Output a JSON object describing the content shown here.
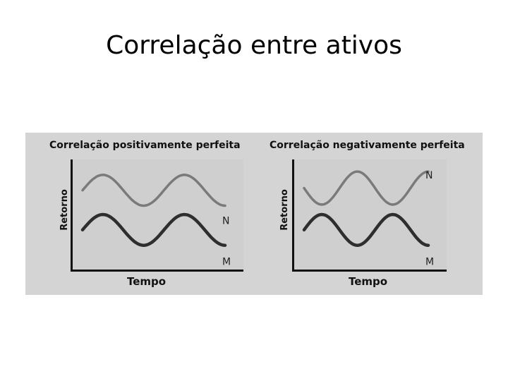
{
  "slide": {
    "title": "Correlação entre ativos"
  },
  "colors": {
    "background": "#d4d4d4",
    "series_N": "#7a7a7a",
    "series_M": "#2e2e2e",
    "axes": "#111111"
  },
  "chart_data": [
    {
      "type": "line",
      "title": "Correlação positivamente perfeita",
      "xlabel": "Tempo",
      "ylabel": "Retorno",
      "grid": false,
      "series": [
        {
          "name": "N",
          "phase": 0,
          "level": 0.72,
          "amplitude": 0.14
        },
        {
          "name": "M",
          "phase": 0,
          "level": 0.36,
          "amplitude": 0.14
        }
      ]
    },
    {
      "type": "line",
      "title": "Correlação negativamente perfeita",
      "xlabel": "Tempo",
      "ylabel": "Retorno",
      "grid": false,
      "series": [
        {
          "name": "N",
          "phase": 180,
          "level": 0.74,
          "amplitude": 0.15
        },
        {
          "name": "M",
          "phase": 0,
          "level": 0.36,
          "amplitude": 0.14
        }
      ]
    }
  ]
}
